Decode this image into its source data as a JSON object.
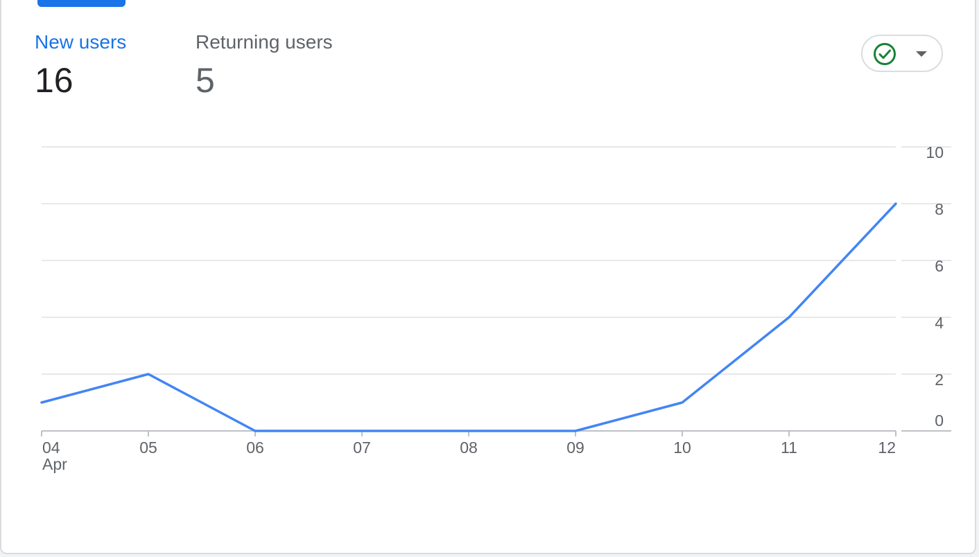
{
  "metrics": {
    "new_users": {
      "label": "New users",
      "value": "16"
    },
    "returning_users": {
      "label": "Returning users",
      "value": "5"
    }
  },
  "status_dropdown": {
    "icon": "check-circle-icon",
    "caret": "arrow-drop-down-icon",
    "icon_color": "#188038"
  },
  "colors": {
    "accent": "#1a73e8",
    "line": "#4285f4"
  },
  "chart_data": {
    "type": "line",
    "categories": [
      "04",
      "05",
      "06",
      "07",
      "08",
      "09",
      "10",
      "11",
      "12"
    ],
    "x_sublabel": "Apr",
    "series": [
      {
        "values": [
          1,
          2,
          0,
          0,
          0,
          0,
          1,
          4,
          8
        ]
      }
    ],
    "y_ticks": [
      "0",
      "2",
      "4",
      "6",
      "8",
      "10"
    ],
    "ylim": [
      0,
      10
    ],
    "y_axis_side": "right",
    "grid": true
  }
}
